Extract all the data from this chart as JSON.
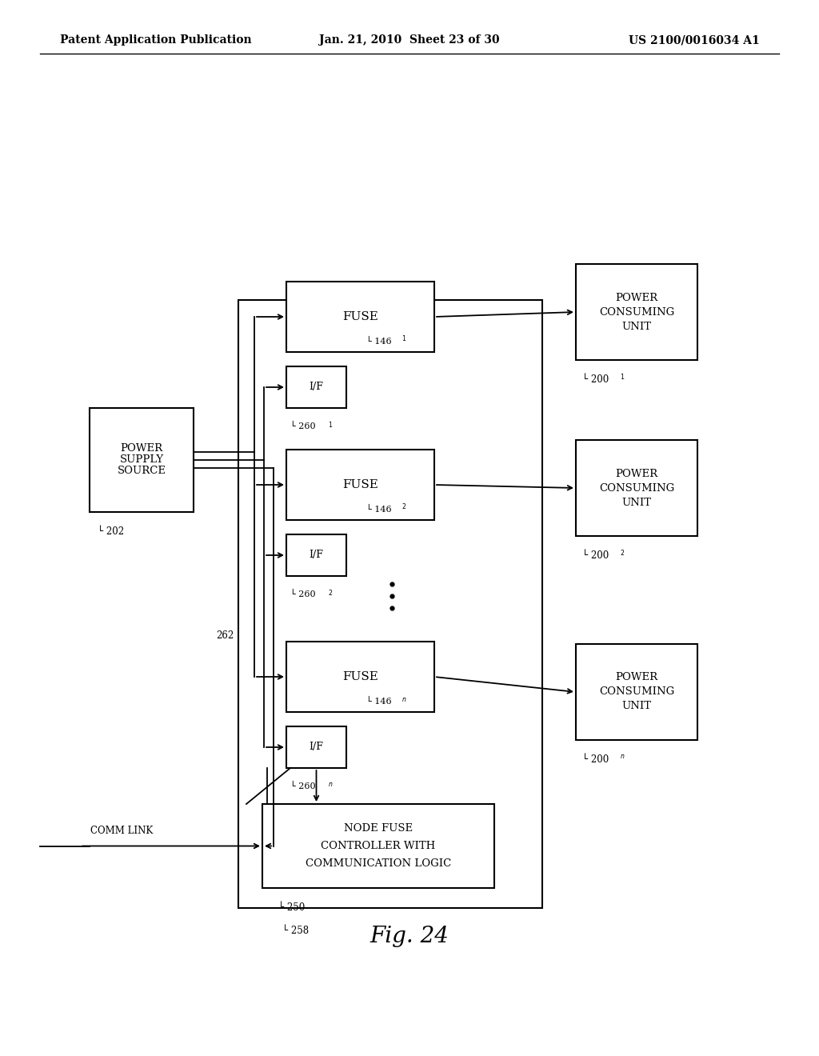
{
  "header_left": "Patent Application Publication",
  "header_center": "Jan. 21, 2010  Sheet 23 of 30",
  "header_right": "US 2100/0016034 A1",
  "figure_label": "Fig. 24",
  "bg_color": "#ffffff"
}
